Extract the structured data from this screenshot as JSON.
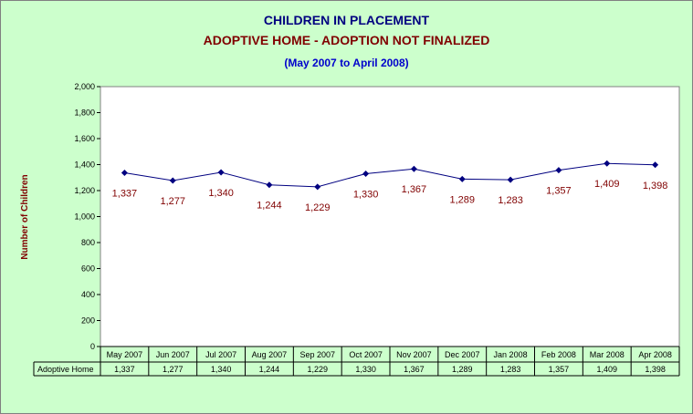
{
  "title": "CHILDREN IN PLACEMENT",
  "subtitle": "ADOPTIVE HOME -  ADOPTION NOT FINALIZED",
  "period": "(May 2007 to April 2008)",
  "colors": {
    "background": "#ccffcc",
    "plot_area": "#ffffff",
    "line": "#000080",
    "data_label": "#800000",
    "ylabel": "#800000",
    "title": "#000080",
    "subtitle": "#800000",
    "period": "#0000cc"
  },
  "chart_data": {
    "type": "line",
    "ylabel": "Number of Children",
    "ylim": [
      0,
      2000
    ],
    "yticks": [
      "0",
      "200",
      "400",
      "600",
      "800",
      "1,000",
      "1,200",
      "1,400",
      "1,600",
      "1,800",
      "2,000"
    ],
    "categories": [
      "May 2007",
      "Jun 2007",
      "Jul 2007",
      "Aug 2007",
      "Sep 2007",
      "Oct 2007",
      "Nov 2007",
      "Dec 2007",
      "Jan 2008",
      "Feb 2008",
      "Mar 2008",
      "Apr 2008"
    ],
    "series": [
      {
        "name": "Adoptive Home",
        "values": [
          1337,
          1277,
          1340,
          1244,
          1229,
          1330,
          1367,
          1289,
          1283,
          1357,
          1409,
          1398
        ],
        "labels": [
          "1,337",
          "1,277",
          "1,340",
          "1,244",
          "1,229",
          "1,330",
          "1,367",
          "1,289",
          "1,283",
          "1,357",
          "1,409",
          "1,398"
        ]
      }
    ],
    "grid": false,
    "data_table": true
  }
}
